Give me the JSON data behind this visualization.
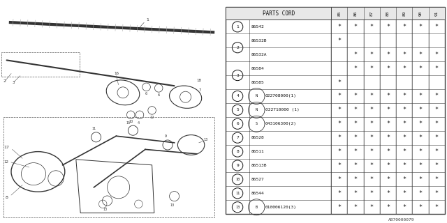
{
  "bg_color": "#ffffff",
  "header_part": "PARTS CORD",
  "year_cols": [
    "85",
    "86",
    "87",
    "88",
    "89",
    "90",
    "91"
  ],
  "rows": [
    {
      "num": "1",
      "prefix": "",
      "code": "86542",
      "stars": [
        1,
        1,
        1,
        1,
        1,
        1,
        1
      ]
    },
    {
      "num": "2",
      "prefix": "",
      "code": "86532B",
      "stars": [
        1,
        0,
        0,
        0,
        0,
        0,
        0
      ]
    },
    {
      "num": "2",
      "prefix": "",
      "code": "86532A",
      "stars": [
        0,
        1,
        1,
        1,
        1,
        1,
        1
      ]
    },
    {
      "num": "3",
      "prefix": "",
      "code": "86584",
      "stars": [
        0,
        1,
        1,
        1,
        1,
        1,
        1
      ]
    },
    {
      "num": "3",
      "prefix": "",
      "code": "86585",
      "stars": [
        1,
        0,
        0,
        0,
        0,
        0,
        0
      ]
    },
    {
      "num": "4",
      "prefix": "N",
      "code": "022708000(1)",
      "stars": [
        1,
        1,
        1,
        1,
        1,
        1,
        1
      ]
    },
    {
      "num": "5",
      "prefix": "N",
      "code": "022710000 (1)",
      "stars": [
        1,
        1,
        1,
        1,
        1,
        1,
        1
      ]
    },
    {
      "num": "6",
      "prefix": "S",
      "code": "043106300(2)",
      "stars": [
        1,
        1,
        1,
        1,
        1,
        1,
        1
      ]
    },
    {
      "num": "7",
      "prefix": "",
      "code": "86528",
      "stars": [
        1,
        1,
        1,
        1,
        1,
        1,
        1
      ]
    },
    {
      "num": "8",
      "prefix": "",
      "code": "86511",
      "stars": [
        1,
        1,
        1,
        1,
        1,
        1,
        1
      ]
    },
    {
      "num": "9",
      "prefix": "",
      "code": "86513B",
      "stars": [
        1,
        1,
        1,
        1,
        1,
        1,
        1
      ]
    },
    {
      "num": "10",
      "prefix": "",
      "code": "86527",
      "stars": [
        1,
        1,
        1,
        1,
        1,
        1,
        1
      ]
    },
    {
      "num": "11",
      "prefix": "",
      "code": "86544",
      "stars": [
        1,
        1,
        1,
        1,
        1,
        1,
        1
      ]
    },
    {
      "num": "13",
      "prefix": "B",
      "code": "010006120(3)",
      "stars": [
        1,
        1,
        1,
        1,
        1,
        1,
        1
      ]
    }
  ],
  "footer_code": "A870000079",
  "line_color": "#444444",
  "text_color": "#111111",
  "star_color": "#111111"
}
